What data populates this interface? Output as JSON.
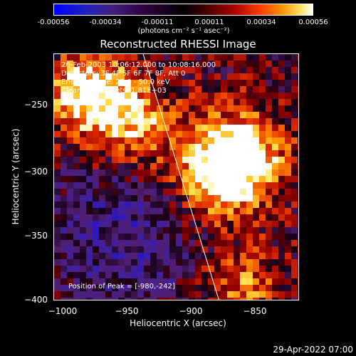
{
  "colorbar": {
    "ticks": [
      "-0.00056",
      "-0.00034",
      "-0.00011",
      "0.00011",
      "0.00034",
      "0.00056"
    ],
    "units": "(photons cm⁻² s⁻¹ asec⁻²)"
  },
  "title": "Reconstructed RHESSI Image",
  "annotations": {
    "time": "26-Feb-2003 10:06:12.000 to 10:08:16.000",
    "detectors": "Detectors: 3F 4F 5F 6F 7F 8F, Att 0",
    "energy": "Energy Range: 25.0 - 50.0 keV",
    "method": "Clean   Total counts: 1.81E+03",
    "peak": "Position of Peak = [-980,-242]"
  },
  "axes": {
    "xlabel": "Heliocentric X (arcsec)",
    "ylabel": "Heliocentric Y (arcsec)",
    "xticks": [
      "−1000",
      "−950",
      "−900",
      "−850"
    ],
    "yticks": [
      "−250",
      "−300",
      "−350",
      "−400"
    ]
  },
  "footer": {
    "timestamp": "29-Apr-2022 07:00"
  },
  "image": {
    "colormap": [
      "#0000ff",
      "#300040",
      "#000000",
      "#b00000",
      "#ff9000",
      "#ffffff"
    ],
    "hotspots": [
      {
        "x": -980,
        "y": -242,
        "value": 1.0
      },
      {
        "x": -880,
        "y": -305,
        "value": 0.95
      },
      {
        "x": -858,
        "y": -290,
        "value": 0.7
      },
      {
        "x": -945,
        "y": -265,
        "value": 0.55
      },
      {
        "x": -860,
        "y": -395,
        "value": 0.6
      }
    ]
  }
}
